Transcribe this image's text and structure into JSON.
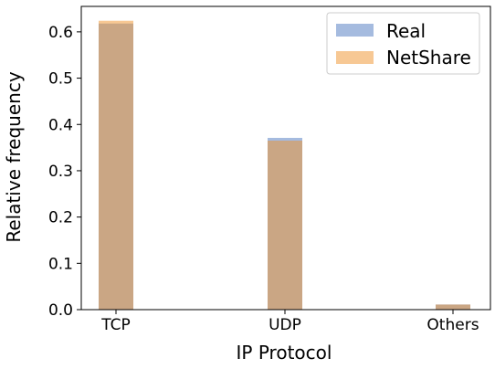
{
  "chart_data": {
    "type": "bar",
    "title": "",
    "xlabel": "IP Protocol",
    "ylabel": "Relative frequency",
    "categories": [
      "TCP",
      "UDP",
      "Others"
    ],
    "ylim": [
      0,
      0.655
    ],
    "yticks": [
      0.0,
      0.1,
      0.2,
      0.3,
      0.4,
      0.5,
      0.6
    ],
    "ytick_labels": [
      "0.0",
      "0.1",
      "0.2",
      "0.3",
      "0.4",
      "0.5",
      "0.6"
    ],
    "series": [
      {
        "name": "Real",
        "values": [
          0.618,
          0.371,
          0.011
        ],
        "color": "#4c78c0",
        "opacity": 0.5
      },
      {
        "name": "NetShare",
        "values": [
          0.624,
          0.365,
          0.011
        ],
        "color": "#f0922a",
        "opacity": 0.5
      }
    ],
    "legend": {
      "position": "top-right",
      "labels": [
        "Real",
        "NetShare"
      ]
    },
    "grid": false
  }
}
